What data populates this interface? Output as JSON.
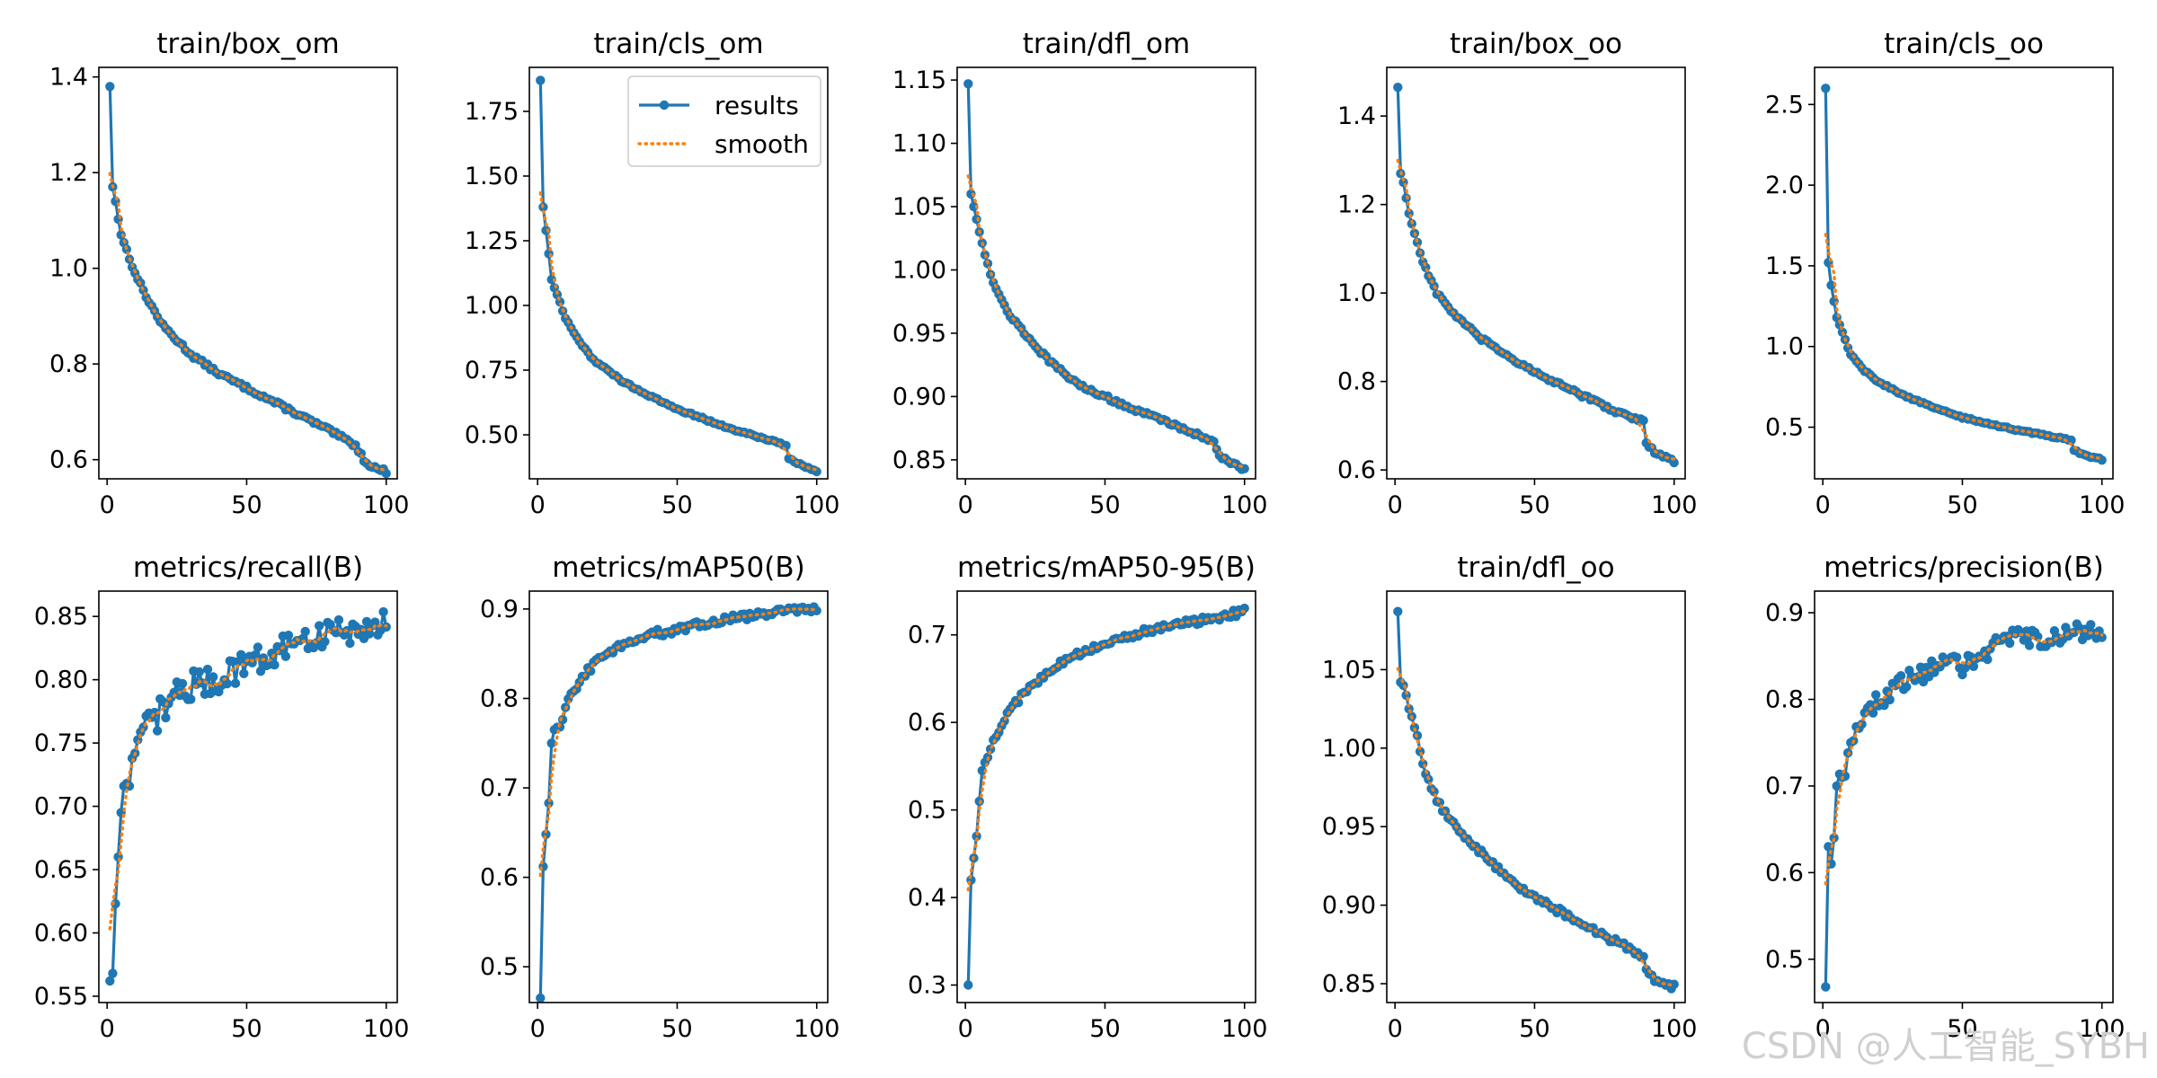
{
  "colors": {
    "results": "#1f77b4",
    "smooth": "#ff7f0e",
    "axes": "#000000",
    "watermark": "#cfcfcf"
  },
  "legend": {
    "results_label": "results",
    "smooth_label": "smooth",
    "panel_index": 1
  },
  "watermark": "CSDN @人工智能_SYBH",
  "chart_data": [
    {
      "type": "line",
      "title": "train/box_om",
      "x_range": [
        1,
        100
      ],
      "xlim": [
        -2.95,
        103.95
      ],
      "xticks": [
        0,
        50,
        100
      ],
      "ylim": [
        0.56,
        1.42
      ],
      "yticks": [
        0.6,
        0.8,
        1.0,
        1.2,
        1.4
      ],
      "ytick_labels": [
        "0.6",
        "0.8",
        "1.0",
        "1.2",
        "1.4"
      ],
      "anchors": [
        [
          1,
          1.38
        ],
        [
          2,
          1.17
        ],
        [
          3,
          1.14
        ],
        [
          5,
          1.07
        ],
        [
          10,
          0.99
        ],
        [
          15,
          0.93
        ],
        [
          20,
          0.88
        ],
        [
          30,
          0.82
        ],
        [
          40,
          0.78
        ],
        [
          50,
          0.75
        ],
        [
          60,
          0.72
        ],
        [
          70,
          0.69
        ],
        [
          80,
          0.66
        ],
        [
          89,
          0.63
        ],
        [
          90,
          0.62
        ],
        [
          92,
          0.6
        ],
        [
          95,
          0.585
        ],
        [
          100,
          0.575
        ]
      ],
      "noise": 0.004
    },
    {
      "type": "line",
      "title": "train/cls_om",
      "x_range": [
        1,
        100
      ],
      "xlim": [
        -2.95,
        103.95
      ],
      "xticks": [
        0,
        50,
        100
      ],
      "ylim": [
        0.33,
        1.92
      ],
      "yticks": [
        0.5,
        0.75,
        1.0,
        1.25,
        1.5,
        1.75
      ],
      "ytick_labels": [
        "0.50",
        "0.75",
        "1.00",
        "1.25",
        "1.50",
        "1.75"
      ],
      "anchors": [
        [
          1,
          1.87
        ],
        [
          2,
          1.38
        ],
        [
          3,
          1.29
        ],
        [
          4,
          1.2
        ],
        [
          5,
          1.1
        ],
        [
          10,
          0.95
        ],
        [
          15,
          0.86
        ],
        [
          20,
          0.79
        ],
        [
          30,
          0.71
        ],
        [
          40,
          0.65
        ],
        [
          50,
          0.6
        ],
        [
          60,
          0.56
        ],
        [
          70,
          0.52
        ],
        [
          80,
          0.49
        ],
        [
          89,
          0.46
        ],
        [
          90,
          0.41
        ],
        [
          93,
          0.39
        ],
        [
          100,
          0.36
        ]
      ],
      "noise": 0.004
    },
    {
      "type": "line",
      "title": "train/dfl_om",
      "x_range": [
        1,
        100
      ],
      "xlim": [
        -2.95,
        103.95
      ],
      "xticks": [
        0,
        50,
        100
      ],
      "ylim": [
        0.835,
        1.16
      ],
      "yticks": [
        0.85,
        0.9,
        0.95,
        1.0,
        1.05,
        1.1,
        1.15
      ],
      "ytick_labels": [
        "0.85",
        "0.90",
        "0.95",
        "1.00",
        "1.05",
        "1.10",
        "1.15"
      ],
      "anchors": [
        [
          1,
          1.147
        ],
        [
          2,
          1.06
        ],
        [
          3,
          1.05
        ],
        [
          4,
          1.04
        ],
        [
          5,
          1.03
        ],
        [
          8,
          1.005
        ],
        [
          10,
          0.99
        ],
        [
          15,
          0.967
        ],
        [
          20,
          0.953
        ],
        [
          30,
          0.928
        ],
        [
          40,
          0.91
        ],
        [
          50,
          0.9
        ],
        [
          60,
          0.89
        ],
        [
          70,
          0.882
        ],
        [
          80,
          0.873
        ],
        [
          89,
          0.864
        ],
        [
          90,
          0.858
        ],
        [
          92,
          0.852
        ],
        [
          95,
          0.847
        ],
        [
          100,
          0.843
        ]
      ],
      "noise": 0.0015
    },
    {
      "type": "line",
      "title": "train/box_oo",
      "x_range": [
        1,
        100
      ],
      "xlim": [
        -2.95,
        103.95
      ],
      "xticks": [
        0,
        50,
        100
      ],
      "ylim": [
        0.58,
        1.51
      ],
      "yticks": [
        0.6,
        0.8,
        1.0,
        1.2,
        1.4
      ],
      "ytick_labels": [
        "0.6",
        "0.8",
        "1.0",
        "1.2",
        "1.4"
      ],
      "anchors": [
        [
          1,
          1.465
        ],
        [
          2,
          1.27
        ],
        [
          3,
          1.25
        ],
        [
          5,
          1.18
        ],
        [
          10,
          1.07
        ],
        [
          15,
          1.0
        ],
        [
          20,
          0.96
        ],
        [
          30,
          0.9
        ],
        [
          40,
          0.86
        ],
        [
          50,
          0.82
        ],
        [
          60,
          0.79
        ],
        [
          70,
          0.76
        ],
        [
          80,
          0.73
        ],
        [
          89,
          0.71
        ],
        [
          90,
          0.66
        ],
        [
          93,
          0.64
        ],
        [
          100,
          0.62
        ]
      ],
      "noise": 0.004
    },
    {
      "type": "line",
      "title": "train/cls_oo",
      "x_range": [
        1,
        100
      ],
      "xlim": [
        -2.95,
        103.95
      ],
      "xticks": [
        0,
        50,
        100
      ],
      "ylim": [
        0.18,
        2.73
      ],
      "yticks": [
        0.5,
        1.0,
        1.5,
        2.0,
        2.5
      ],
      "ytick_labels": [
        "0.5",
        "1.0",
        "1.5",
        "2.0",
        "2.5"
      ],
      "anchors": [
        [
          1,
          2.6
        ],
        [
          2,
          1.52
        ],
        [
          3,
          1.38
        ],
        [
          5,
          1.18
        ],
        [
          10,
          0.95
        ],
        [
          15,
          0.85
        ],
        [
          20,
          0.78
        ],
        [
          30,
          0.69
        ],
        [
          40,
          0.62
        ],
        [
          50,
          0.56
        ],
        [
          60,
          0.52
        ],
        [
          70,
          0.48
        ],
        [
          80,
          0.45
        ],
        [
          89,
          0.42
        ],
        [
          90,
          0.36
        ],
        [
          93,
          0.33
        ],
        [
          100,
          0.3
        ]
      ],
      "noise": 0.005
    },
    {
      "type": "line",
      "title": "metrics/recall(B)",
      "x_range": [
        1,
        100
      ],
      "xlim": [
        -2.95,
        103.95
      ],
      "xticks": [
        0,
        50,
        100
      ],
      "ylim": [
        0.545,
        0.87
      ],
      "yticks": [
        0.55,
        0.6,
        0.65,
        0.7,
        0.75,
        0.8,
        0.85
      ],
      "ytick_labels": [
        "0.55",
        "0.60",
        "0.65",
        "0.70",
        "0.75",
        "0.80",
        "0.85"
      ],
      "anchors": [
        [
          1,
          0.562
        ],
        [
          2,
          0.568
        ],
        [
          3,
          0.623
        ],
        [
          4,
          0.66
        ],
        [
          5,
          0.695
        ],
        [
          6,
          0.716
        ],
        [
          8,
          0.716
        ],
        [
          10,
          0.742
        ],
        [
          15,
          0.765
        ],
        [
          20,
          0.776
        ],
        [
          25,
          0.79
        ],
        [
          30,
          0.795
        ],
        [
          40,
          0.8
        ],
        [
          50,
          0.815
        ],
        [
          60,
          0.82
        ],
        [
          70,
          0.83
        ],
        [
          80,
          0.838
        ],
        [
          90,
          0.84
        ],
        [
          100,
          0.845
        ]
      ],
      "noise": 0.012
    },
    {
      "type": "line",
      "title": "metrics/mAP50(B)",
      "x_range": [
        1,
        100
      ],
      "xlim": [
        -2.95,
        103.95
      ],
      "xticks": [
        0,
        50,
        100
      ],
      "ylim": [
        0.46,
        0.92
      ],
      "yticks": [
        0.5,
        0.6,
        0.7,
        0.8,
        0.9
      ],
      "ytick_labels": [
        "0.5",
        "0.6",
        "0.7",
        "0.8",
        "0.9"
      ],
      "anchors": [
        [
          1,
          0.465
        ],
        [
          2,
          0.612
        ],
        [
          3,
          0.648
        ],
        [
          4,
          0.683
        ],
        [
          5,
          0.75
        ],
        [
          6,
          0.765
        ],
        [
          8,
          0.768
        ],
        [
          10,
          0.79
        ],
        [
          15,
          0.82
        ],
        [
          20,
          0.838
        ],
        [
          30,
          0.86
        ],
        [
          40,
          0.872
        ],
        [
          50,
          0.876
        ],
        [
          60,
          0.884
        ],
        [
          70,
          0.89
        ],
        [
          80,
          0.894
        ],
        [
          90,
          0.898
        ],
        [
          100,
          0.901
        ]
      ],
      "noise": 0.004
    },
    {
      "type": "line",
      "title": "metrics/mAP50-95(B)",
      "x_range": [
        1,
        100
      ],
      "xlim": [
        -2.95,
        103.95
      ],
      "xticks": [
        0,
        50,
        100
      ],
      "ylim": [
        0.28,
        0.75
      ],
      "yticks": [
        0.3,
        0.4,
        0.5,
        0.6,
        0.7
      ],
      "ytick_labels": [
        "0.3",
        "0.4",
        "0.5",
        "0.6",
        "0.7"
      ],
      "anchors": [
        [
          1,
          0.3
        ],
        [
          2,
          0.42
        ],
        [
          3,
          0.445
        ],
        [
          4,
          0.47
        ],
        [
          5,
          0.51
        ],
        [
          6,
          0.545
        ],
        [
          8,
          0.56
        ],
        [
          10,
          0.58
        ],
        [
          15,
          0.61
        ],
        [
          20,
          0.63
        ],
        [
          30,
          0.66
        ],
        [
          40,
          0.677
        ],
        [
          50,
          0.69
        ],
        [
          60,
          0.7
        ],
        [
          70,
          0.708
        ],
        [
          80,
          0.714
        ],
        [
          90,
          0.72
        ],
        [
          100,
          0.727
        ]
      ],
      "noise": 0.004
    },
    {
      "type": "line",
      "title": "train/dfl_oo",
      "x_range": [
        1,
        100
      ],
      "xlim": [
        -2.95,
        103.95
      ],
      "xticks": [
        0,
        50,
        100
      ],
      "ylim": [
        0.838,
        1.1
      ],
      "yticks": [
        0.85,
        0.9,
        0.95,
        1.0,
        1.05
      ],
      "ytick_labels": [
        "0.85",
        "0.90",
        "0.95",
        "1.00",
        "1.05"
      ],
      "anchors": [
        [
          1,
          1.087
        ],
        [
          2,
          1.042
        ],
        [
          3,
          1.04
        ],
        [
          5,
          1.025
        ],
        [
          8,
          1.008
        ],
        [
          10,
          0.99
        ],
        [
          15,
          0.967
        ],
        [
          20,
          0.953
        ],
        [
          30,
          0.935
        ],
        [
          40,
          0.918
        ],
        [
          50,
          0.905
        ],
        [
          60,
          0.895
        ],
        [
          70,
          0.885
        ],
        [
          80,
          0.876
        ],
        [
          89,
          0.868
        ],
        [
          90,
          0.86
        ],
        [
          93,
          0.852
        ],
        [
          100,
          0.848
        ]
      ],
      "noise": 0.002
    },
    {
      "type": "line",
      "title": "metrics/precision(B)",
      "x_range": [
        1,
        100
      ],
      "xlim": [
        -2.95,
        103.95
      ],
      "xticks": [
        0,
        50,
        100
      ],
      "ylim": [
        0.45,
        0.925
      ],
      "yticks": [
        0.5,
        0.6,
        0.7,
        0.8,
        0.9
      ],
      "ytick_labels": [
        "0.5",
        "0.6",
        "0.7",
        "0.8",
        "0.9"
      ],
      "anchors": [
        [
          1,
          0.468
        ],
        [
          2,
          0.63
        ],
        [
          3,
          0.61
        ],
        [
          4,
          0.64
        ],
        [
          5,
          0.7
        ],
        [
          7,
          0.71
        ],
        [
          10,
          0.75
        ],
        [
          15,
          0.78
        ],
        [
          20,
          0.8
        ],
        [
          30,
          0.82
        ],
        [
          40,
          0.84
        ],
        [
          50,
          0.84
        ],
        [
          60,
          0.86
        ],
        [
          70,
          0.87
        ],
        [
          80,
          0.872
        ],
        [
          90,
          0.875
        ],
        [
          100,
          0.88
        ]
      ],
      "noise": 0.012
    }
  ]
}
